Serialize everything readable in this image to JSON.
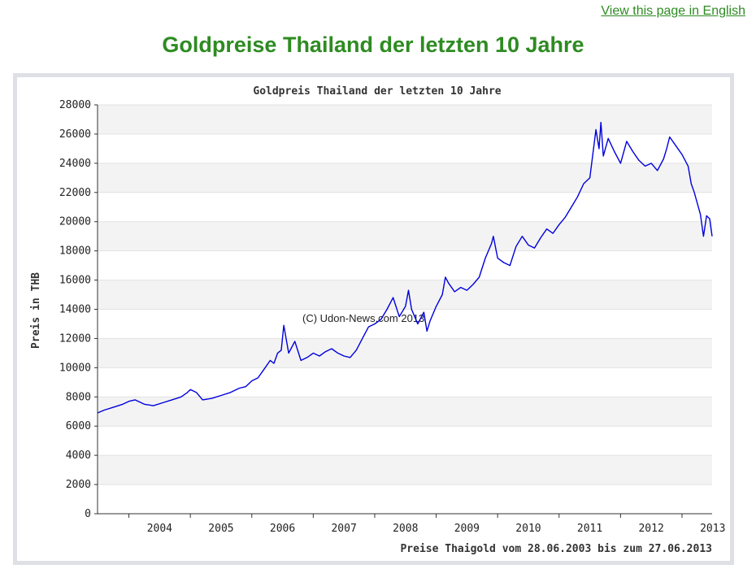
{
  "header": {
    "lang_link": "View this page in English",
    "page_title": "Goldpreise Thailand der letzten 10 Jahre"
  },
  "chart_data": {
    "type": "line",
    "title": "Goldpreis Thailand der letzten 10 Jahre",
    "ylabel": "Preis in THB",
    "xlabel": "Preise Thaigold vom 28.06.2003 bis zum 27.06.2013",
    "watermark": "(C) Udon-News.com 2013",
    "ylim": [
      0,
      28000
    ],
    "xlim": [
      2003.49,
      2013.49
    ],
    "yticks": [
      "0",
      "2000",
      "4000",
      "6000",
      "8000",
      "10000",
      "12000",
      "14000",
      "16000",
      "18000",
      "20000",
      "22000",
      "24000",
      "26000",
      "28000"
    ],
    "xticks": [
      "2004",
      "2005",
      "2006",
      "2007",
      "2008",
      "2009",
      "2010",
      "2011",
      "2012",
      "2013"
    ],
    "grid": true,
    "line_color": "#0000dd",
    "series": [
      {
        "x": [
          2003.49,
          2003.6,
          2003.75,
          2003.9,
          2004.0,
          2004.1,
          2004.25,
          2004.4,
          2004.55,
          2004.7,
          2004.85,
          2004.95,
          2005.0,
          2005.1,
          2005.2,
          2005.35,
          2005.5,
          2005.65,
          2005.8,
          2005.9,
          2006.0,
          2006.1,
          2006.2,
          2006.3,
          2006.36,
          2006.42,
          2006.48,
          2006.52,
          2006.6,
          2006.7,
          2006.8,
          2006.9,
          2007.0,
          2007.1,
          2007.2,
          2007.3,
          2007.4,
          2007.5,
          2007.6,
          2007.7,
          2007.8,
          2007.9,
          2008.0,
          2008.1,
          2008.2,
          2008.3,
          2008.4,
          2008.5,
          2008.55,
          2008.6,
          2008.7,
          2008.8,
          2008.85,
          2008.9,
          2009.0,
          2009.1,
          2009.15,
          2009.2,
          2009.3,
          2009.4,
          2009.5,
          2009.6,
          2009.7,
          2009.8,
          2009.9,
          2009.93,
          2010.0,
          2010.1,
          2010.2,
          2010.3,
          2010.4,
          2010.5,
          2010.6,
          2010.7,
          2010.8,
          2010.9,
          2011.0,
          2011.1,
          2011.2,
          2011.3,
          2011.4,
          2011.5,
          2011.6,
          2011.65,
          2011.68,
          2011.72,
          2011.8,
          2011.9,
          2012.0,
          2012.1,
          2012.2,
          2012.3,
          2012.4,
          2012.5,
          2012.6,
          2012.7,
          2012.75,
          2012.8,
          2012.9,
          2013.0,
          2013.1,
          2013.15,
          2013.2,
          2013.3,
          2013.35,
          2013.4,
          2013.45,
          2013.49
        ],
        "y": [
          6900,
          7100,
          7300,
          7500,
          7700,
          7800,
          7500,
          7400,
          7600,
          7800,
          8000,
          8300,
          8500,
          8300,
          7800,
          7900,
          8100,
          8300,
          8600,
          8700,
          9100,
          9300,
          9900,
          10500,
          10300,
          11000,
          11200,
          12900,
          11000,
          11800,
          10500,
          10700,
          11000,
          10800,
          11100,
          11300,
          11000,
          10800,
          10700,
          11200,
          12000,
          12800,
          13000,
          13300,
          14000,
          14800,
          13500,
          14200,
          15300,
          14000,
          13000,
          13800,
          12500,
          13200,
          14200,
          15000,
          16200,
          15800,
          15200,
          15500,
          15300,
          15700,
          16200,
          17500,
          18500,
          19000,
          17500,
          17200,
          17000,
          18300,
          19000,
          18400,
          18200,
          18900,
          19500,
          19200,
          19800,
          20300,
          21000,
          21700,
          22600,
          23000,
          26300,
          25000,
          26800,
          24500,
          25700,
          24800,
          24000,
          25500,
          24800,
          24200,
          23800,
          24000,
          23500,
          24300,
          25000,
          25800,
          25200,
          24600,
          23800,
          22600,
          22000,
          20500,
          19000,
          20400,
          20200,
          19000
        ]
      }
    ]
  }
}
